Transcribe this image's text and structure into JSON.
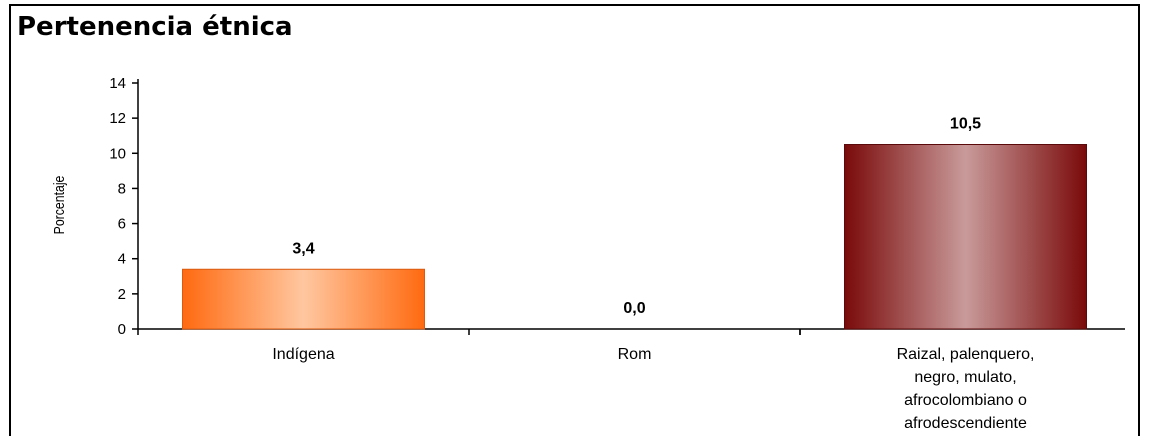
{
  "chart_data": {
    "type": "bar",
    "title": "Pertenencia étnica",
    "ylabel": "Porcentaje",
    "xlabel": "",
    "ylim": [
      0,
      14
    ],
    "yticks": [
      0,
      2,
      4,
      6,
      8,
      10,
      12,
      14
    ],
    "grid": false,
    "legend": "none",
    "categories": [
      [
        "Indígena"
      ],
      [
        "Rom"
      ],
      [
        "Raizal, palenquero,",
        "negro, mulato,",
        "afrocolombiano o",
        "afrodescendiente"
      ]
    ],
    "values": [
      3.4,
      0.0,
      10.5
    ],
    "value_labels": [
      "3,4",
      "0,0",
      "10,5"
    ],
    "colors": [
      {
        "edge": "#ff6a10",
        "center": "#ffc7a0",
        "stroke": "#d95a10"
      },
      {
        "edge": "#ff6a10",
        "center": "#ffc7a0",
        "stroke": "#d95a10"
      },
      {
        "edge": "#7a0a0a",
        "center": "#c99a9a",
        "stroke": "#5a0a0a"
      }
    ]
  }
}
